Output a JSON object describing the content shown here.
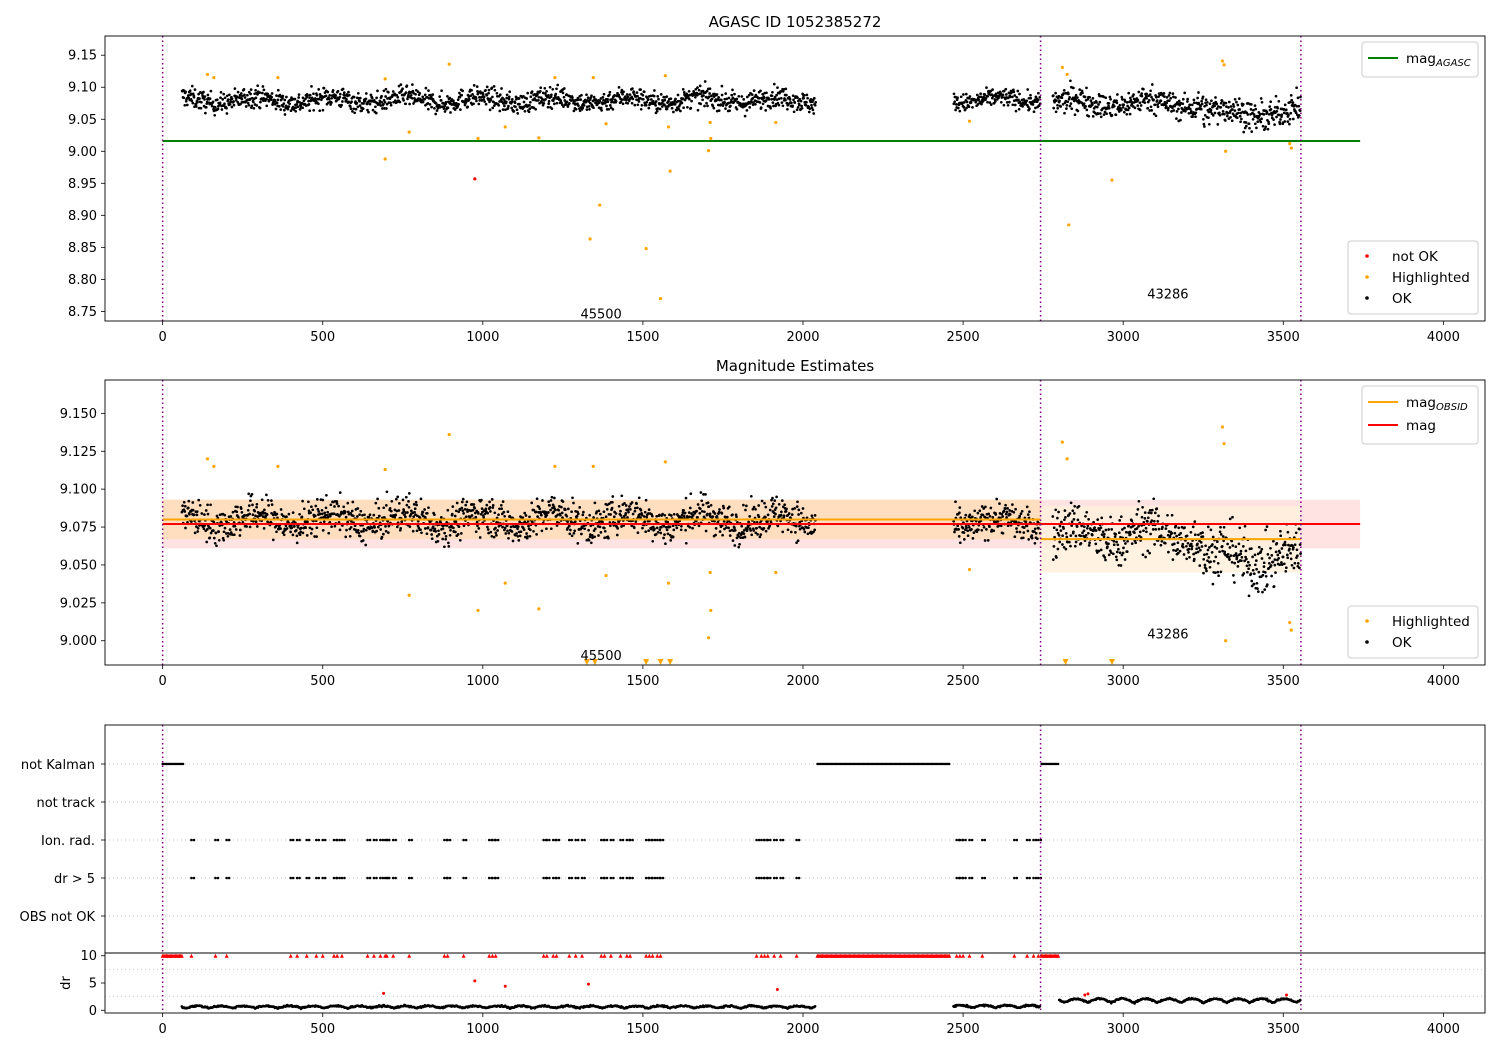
{
  "chart_data": [
    {
      "type": "scatter",
      "title": "AGASC ID 1052385272",
      "xlim": [
        -180,
        4130
      ],
      "ylim": [
        8.735,
        9.18
      ],
      "x_ticks": [
        0,
        500,
        1000,
        1500,
        2000,
        2500,
        3000,
        3500,
        4000
      ],
      "y_ticks": [
        "9.15",
        "9.10",
        "9.05",
        "9.00",
        "8.95",
        "8.90",
        "8.85",
        "8.80",
        "8.75"
      ],
      "obsid_boundaries": [
        0,
        2742,
        3555
      ],
      "lines": [
        {
          "name": "mag",
          "subscript": "AGASC",
          "color": "#008000",
          "y": 9.016,
          "x": [
            0,
            3740
          ]
        }
      ],
      "series": [
        {
          "name": "OK",
          "color": "#000000",
          "segments": [
            {
              "x": [
                60,
                2040
              ],
              "y": 9.08,
              "spread": 0.016
            },
            {
              "x": [
                2470,
                2742
              ],
              "y": 9.08,
              "spread": 0.014
            },
            {
              "x": [
                2780,
                3250
              ],
              "y": 9.075,
              "spread": 0.02
            },
            {
              "x": [
                3250,
                3555
              ],
              "y": 9.06,
              "spread": 0.022
            }
          ]
        },
        {
          "name": "Highlighted",
          "color": "#ffa500",
          "points": [
            [
              140,
              9.12
            ],
            [
              160,
              9.115
            ],
            [
              360,
              9.115
            ],
            [
              695,
              9.113
            ],
            [
              695,
              8.988
            ],
            [
              770,
              9.03
            ],
            [
              895,
              9.136
            ],
            [
              985,
              9.02
            ],
            [
              1070,
              9.038
            ],
            [
              1175,
              9.021
            ],
            [
              1225,
              9.115
            ],
            [
              1335,
              8.863
            ],
            [
              1345,
              9.115
            ],
            [
              1365,
              8.916
            ],
            [
              1385,
              9.043
            ],
            [
              1510,
              8.848
            ],
            [
              1555,
              8.77
            ],
            [
              1570,
              9.118
            ],
            [
              1580,
              9.038
            ],
            [
              1585,
              8.969
            ],
            [
              1705,
              9.001
            ],
            [
              1710,
              9.045
            ],
            [
              1712,
              9.02
            ],
            [
              1915,
              9.045
            ],
            [
              2520,
              9.047
            ],
            [
              2810,
              9.131
            ],
            [
              2825,
              9.12
            ],
            [
              2830,
              8.885
            ],
            [
              2965,
              8.955
            ],
            [
              3310,
              9.141
            ],
            [
              3315,
              9.135
            ],
            [
              3320,
              9.0
            ],
            [
              3520,
              9.012
            ],
            [
              3525,
              9.005
            ]
          ]
        },
        {
          "name": "not OK",
          "color": "#ff0000",
          "points": [
            [
              975,
              8.957
            ]
          ]
        }
      ],
      "annotations": [
        {
          "text": "45500",
          "x": 1305,
          "y": 8.745
        },
        {
          "text": "43286",
          "x": 3075,
          "y": 8.776
        }
      ],
      "legend_top": [
        {
          "label": "mag",
          "sub": "AGASC",
          "color": "#008000"
        }
      ],
      "legend_bottom": [
        "not OK",
        "Highlighted",
        "OK"
      ]
    },
    {
      "type": "scatter",
      "title": "Magnitude Estimates",
      "xlim": [
        -180,
        4130
      ],
      "ylim": [
        8.984,
        9.172
      ],
      "x_ticks": [
        0,
        500,
        1000,
        1500,
        2000,
        2500,
        3000,
        3500,
        4000
      ],
      "y_ticks": [
        "9.150",
        "9.125",
        "9.100",
        "9.075",
        "9.050",
        "9.025",
        "9.000"
      ],
      "obsid_boundaries": [
        0,
        2742,
        3555
      ],
      "bands": [
        {
          "x": [
            0,
            3740
          ],
          "y": [
            9.061,
            9.093
          ],
          "color": "#ffdddd"
        },
        {
          "x": [
            0,
            2742
          ],
          "y": [
            9.067,
            9.093
          ],
          "color": "#ffdcb8"
        },
        {
          "x": [
            2742,
            3555
          ],
          "y": [
            9.045,
            9.089
          ],
          "color": "#fff0dc"
        }
      ],
      "lines": [
        {
          "name": "mag",
          "subscript": "OBSID",
          "color": "#ffa500",
          "segments": [
            {
              "x": [
                0,
                2742
              ],
              "y": 9.08
            },
            {
              "x": [
                2742,
                3555
              ],
              "y": 9.067
            }
          ]
        },
        {
          "name": "mag",
          "color": "#ff0000",
          "segments": [
            {
              "x": [
                0,
                3740
              ],
              "y": 9.077
            }
          ]
        }
      ],
      "series": [
        {
          "name": "OK",
          "color": "#000000",
          "segments": [
            {
              "x": [
                60,
                2040
              ],
              "y": 9.08,
              "spread": 0.012
            },
            {
              "x": [
                2470,
                2742
              ],
              "y": 9.078,
              "spread": 0.011
            },
            {
              "x": [
                2780,
                3250
              ],
              "y": 9.07,
              "spread": 0.016
            },
            {
              "x": [
                3250,
                3555
              ],
              "y": 9.055,
              "spread": 0.018
            }
          ]
        },
        {
          "name": "Highlighted",
          "color": "#ffa500",
          "points": [
            [
              140,
              9.12
            ],
            [
              160,
              9.115
            ],
            [
              360,
              9.115
            ],
            [
              695,
              9.113
            ],
            [
              770,
              9.03
            ],
            [
              895,
              9.136
            ],
            [
              985,
              9.02
            ],
            [
              1070,
              9.038
            ],
            [
              1175,
              9.021
            ],
            [
              1225,
              9.115
            ],
            [
              1345,
              9.115
            ],
            [
              1385,
              9.043
            ],
            [
              1570,
              9.118
            ],
            [
              1580,
              9.038
            ],
            [
              1710,
              9.045
            ],
            [
              1712,
              9.02
            ],
            [
              1705,
              9.002
            ],
            [
              1915,
              9.045
            ],
            [
              2520,
              9.047
            ],
            [
              2810,
              9.131
            ],
            [
              2825,
              9.12
            ],
            [
              3310,
              9.141
            ],
            [
              3315,
              9.13
            ],
            [
              3320,
              9.0
            ],
            [
              3520,
              9.012
            ],
            [
              3525,
              9.007
            ]
          ]
        },
        {
          "name": "Highlighted (off scale)",
          "color": "#ffa500",
          "marker": "triangle-down",
          "points": [
            [
              1325,
              8.986
            ],
            [
              1350,
              8.986
            ],
            [
              1510,
              8.986
            ],
            [
              1555,
              8.986
            ],
            [
              1585,
              8.986
            ],
            [
              2820,
              8.986
            ],
            [
              2965,
              8.986
            ]
          ]
        }
      ],
      "annotations": [
        {
          "text": "45500",
          "x": 1305,
          "y": 8.99
        },
        {
          "text": "43286",
          "x": 3075,
          "y": 9.004
        }
      ],
      "legend_top": [
        {
          "label": "mag",
          "sub": "OBSID",
          "color": "#ffa500"
        },
        {
          "label": "mag",
          "sub": "",
          "color": "#ff0000"
        }
      ],
      "legend_bottom": [
        "Highlighted",
        "OK"
      ]
    },
    {
      "type": "scatter",
      "xlim": [
        -180,
        4130
      ],
      "obsid_boundaries": [
        0,
        2742,
        3555
      ],
      "flag_rows": [
        "not Kalman",
        "not track",
        "Ion. rad.",
        "dr > 5",
        "OBS not OK"
      ],
      "flags": {
        "not Kalman": [
          [
            0,
            65
          ],
          [
            2045,
            2460
          ],
          [
            2745,
            2800
          ]
        ],
        "not track": [],
        "Ion. rad.": [
          90,
          165,
          200,
          400,
          420,
          450,
          480,
          500,
          535,
          545,
          560,
          640,
          660,
          680,
          695,
          700,
          720,
          770,
          880,
          890,
          940,
          1020,
          1030,
          1040,
          1190,
          1200,
          1220,
          1230,
          1270,
          1290,
          1310,
          1370,
          1380,
          1400,
          1430,
          1450,
          1460,
          1510,
          1520,
          1530,
          1545,
          1555,
          1855,
          1870,
          1880,
          1890,
          1910,
          1930,
          1980,
          2480,
          2490,
          2500,
          2520,
          2560,
          2660,
          2700,
          2720,
          2735
        ],
        "dr > 5": [
          90,
          165,
          200,
          400,
          420,
          450,
          480,
          500,
          535,
          545,
          560,
          640,
          660,
          680,
          695,
          700,
          720,
          770,
          880,
          890,
          940,
          1020,
          1030,
          1040,
          1190,
          1200,
          1220,
          1230,
          1270,
          1290,
          1310,
          1370,
          1380,
          1400,
          1430,
          1450,
          1460,
          1510,
          1520,
          1530,
          1545,
          1555,
          1855,
          1870,
          1880,
          1890,
          1910,
          1930,
          1980,
          2480,
          2490,
          2500,
          2520,
          2560,
          2660,
          2700,
          2720,
          2735
        ],
        "OBS not OK": []
      },
      "dr_panel": {
        "ylabel": "dr",
        "ylim": [
          -0.5,
          10.5
        ],
        "y_ticks": [
          0,
          5,
          10
        ],
        "x_ticks": [
          0,
          500,
          1000,
          1500,
          2000,
          2500,
          3000,
          3500,
          4000
        ],
        "clipped_marker_y": 10,
        "segments": [
          {
            "x": [
              60,
              2040
            ],
            "y": 0.4,
            "spread": 0.5
          },
          {
            "x": [
              2470,
              2742
            ],
            "y": 0.5,
            "spread": 0.5
          },
          {
            "x": [
              2800,
              3555
            ],
            "y": 1.4,
            "spread": 0.9
          }
        ],
        "red_points": [
          [
            690,
            3.1
          ],
          [
            975,
            5.4
          ],
          [
            1070,
            4.4
          ],
          [
            1330,
            4.8
          ],
          [
            1920,
            3.8
          ],
          [
            2880,
            2.8
          ],
          [
            2890,
            3.0
          ],
          [
            3510,
            2.8
          ]
        ]
      }
    }
  ]
}
